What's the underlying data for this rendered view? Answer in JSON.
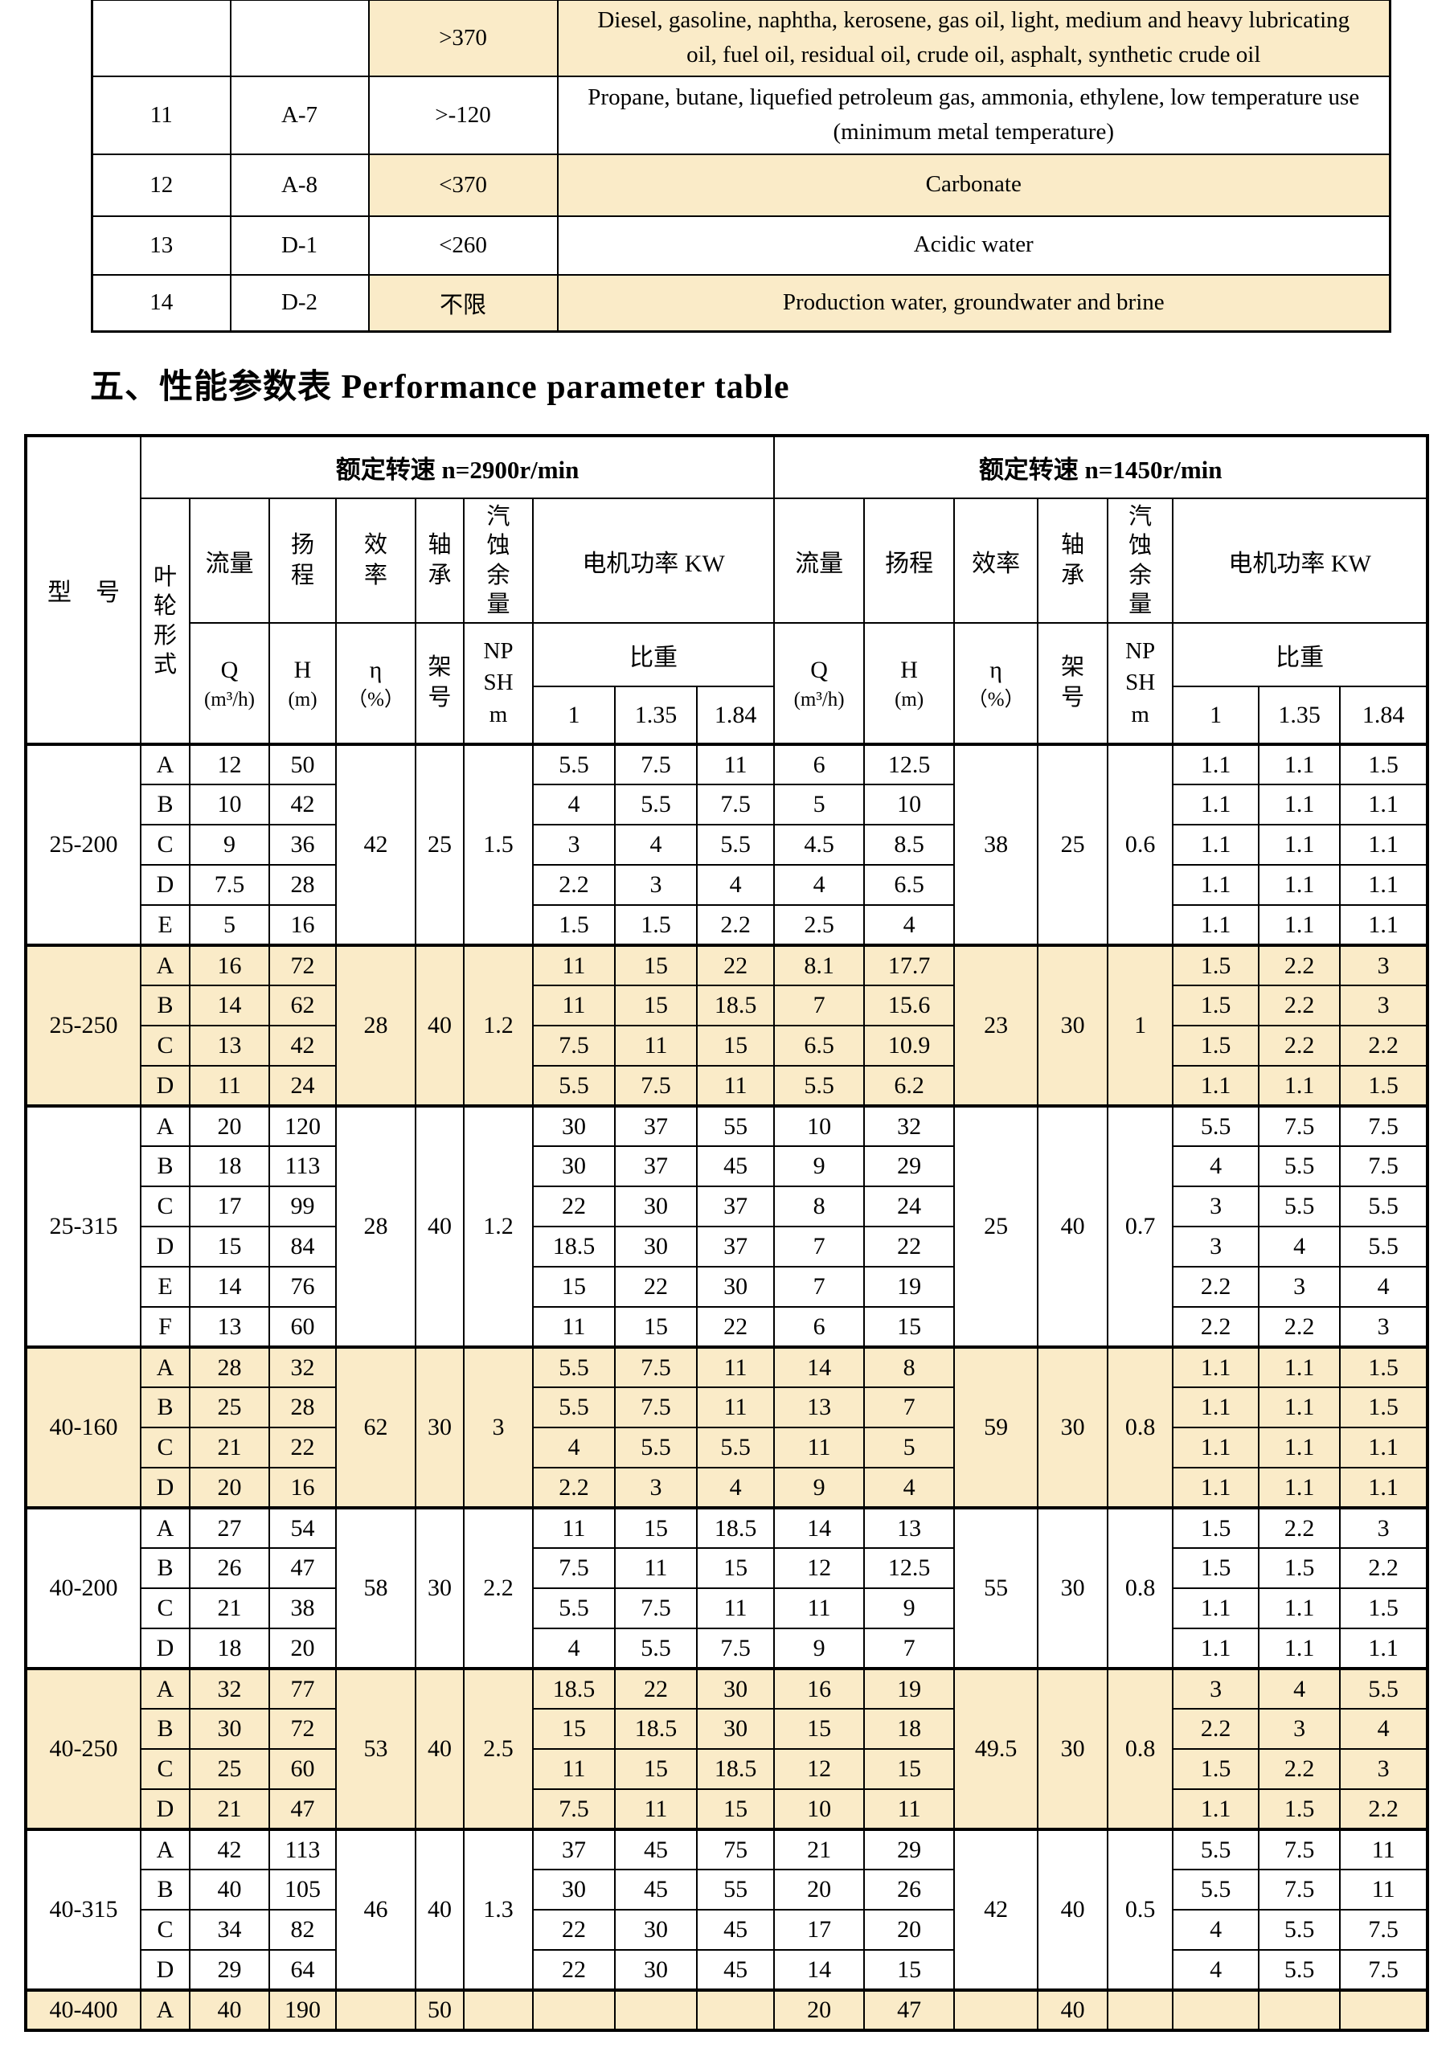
{
  "colors": {
    "shade": "#faebc8",
    "border": "#000000",
    "text": "#000000"
  },
  "media_table": {
    "rows": [
      {
        "num": "",
        "code": "",
        "temp": ">370",
        "medium": "Diesel, gasoline, naphtha, kerosene, gas oil, light, medium and heavy lubricating oil, fuel oil, residual oil, crude oil, asphalt, synthetic crude oil",
        "shaded": true
      },
      {
        "num": "11",
        "code": "A-7",
        "temp": ">-120",
        "medium": "Propane, butane, liquefied petroleum gas, ammonia, ethylene, low temperature use (minimum metal temperature)",
        "shaded": false
      },
      {
        "num": "12",
        "code": "A-8",
        "temp": "<370",
        "medium": "Carbonate",
        "shaded": true
      },
      {
        "num": "13",
        "code": "D-1",
        "temp": "<260",
        "medium": "Acidic water",
        "shaded": false
      },
      {
        "num": "14",
        "code": "D-2",
        "temp": "不限",
        "medium": "Production water, groundwater and brine",
        "shaded": true
      }
    ]
  },
  "heading": "五、性能参数表 Performance parameter table",
  "perf": {
    "header": {
      "model": "型　号",
      "impeller": "叶轮形式",
      "speed_left": "额定转速 n=2900r/min",
      "speed_right": "额定转速 n=1450r/min",
      "flow": "流量",
      "head": "扬程",
      "eff": "效率",
      "bearing": "轴承",
      "npsh": "汽蚀余量",
      "power": "电机功率 KW",
      "gravity": "比重",
      "q_sym": "Q",
      "q_unit": "(m³/h)",
      "h_sym": "H",
      "h_unit": "(m)",
      "eta_sym": "η",
      "eta_unit": "（%）",
      "frame": "架号",
      "npsh_code": "NPSH m",
      "g1": "1",
      "g135": "1.35",
      "g184": "1.84"
    },
    "sections": [
      {
        "model": "25-200",
        "shaded": false,
        "left": {
          "eta": "42",
          "frame": "25",
          "npsh": "1.5"
        },
        "right": {
          "eta": "38",
          "frame": "25",
          "npsh": "0.6"
        },
        "rows": [
          {
            "imp": "A",
            "q1": "12",
            "h1": "50",
            "p1": [
              "5.5",
              "7.5",
              "11"
            ],
            "q2": "6",
            "h2": "12.5",
            "p2": [
              "1.1",
              "1.1",
              "1.5"
            ]
          },
          {
            "imp": "B",
            "q1": "10",
            "h1": "42",
            "p1": [
              "4",
              "5.5",
              "7.5"
            ],
            "q2": "5",
            "h2": "10",
            "p2": [
              "1.1",
              "1.1",
              "1.1"
            ]
          },
          {
            "imp": "C",
            "q1": "9",
            "h1": "36",
            "p1": [
              "3",
              "4",
              "5.5"
            ],
            "q2": "4.5",
            "h2": "8.5",
            "p2": [
              "1.1",
              "1.1",
              "1.1"
            ]
          },
          {
            "imp": "D",
            "q1": "7.5",
            "h1": "28",
            "p1": [
              "2.2",
              "3",
              "4"
            ],
            "q2": "4",
            "h2": "6.5",
            "p2": [
              "1.1",
              "1.1",
              "1.1"
            ]
          },
          {
            "imp": "E",
            "q1": "5",
            "h1": "16",
            "p1": [
              "1.5",
              "1.5",
              "2.2"
            ],
            "q2": "2.5",
            "h2": "4",
            "p2": [
              "1.1",
              "1.1",
              "1.1"
            ]
          }
        ]
      },
      {
        "model": "25-250",
        "shaded": true,
        "left": {
          "eta": "28",
          "frame": "40",
          "npsh": "1.2"
        },
        "right": {
          "eta": "23",
          "frame": "30",
          "npsh": "1"
        },
        "rows": [
          {
            "imp": "A",
            "q1": "16",
            "h1": "72",
            "p1": [
              "11",
              "15",
              "22"
            ],
            "q2": "8.1",
            "h2": "17.7",
            "p2": [
              "1.5",
              "2.2",
              "3"
            ]
          },
          {
            "imp": "B",
            "q1": "14",
            "h1": "62",
            "p1": [
              "11",
              "15",
              "18.5"
            ],
            "q2": "7",
            "h2": "15.6",
            "p2": [
              "1.5",
              "2.2",
              "3"
            ]
          },
          {
            "imp": "C",
            "q1": "13",
            "h1": "42",
            "p1": [
              "7.5",
              "11",
              "15"
            ],
            "q2": "6.5",
            "h2": "10.9",
            "p2": [
              "1.5",
              "2.2",
              "2.2"
            ]
          },
          {
            "imp": "D",
            "q1": "11",
            "h1": "24",
            "p1": [
              "5.5",
              "7.5",
              "11"
            ],
            "q2": "5.5",
            "h2": "6.2",
            "p2": [
              "1.1",
              "1.1",
              "1.5"
            ]
          }
        ]
      },
      {
        "model": "25-315",
        "shaded": false,
        "left": {
          "eta": "28",
          "frame": "40",
          "npsh": "1.2"
        },
        "right": {
          "eta": "25",
          "frame": "40",
          "npsh": "0.7"
        },
        "rows": [
          {
            "imp": "A",
            "q1": "20",
            "h1": "120",
            "p1": [
              "30",
              "37",
              "55"
            ],
            "q2": "10",
            "h2": "32",
            "p2": [
              "5.5",
              "7.5",
              "7.5"
            ]
          },
          {
            "imp": "B",
            "q1": "18",
            "h1": "113",
            "p1": [
              "30",
              "37",
              "45"
            ],
            "q2": "9",
            "h2": "29",
            "p2": [
              "4",
              "5.5",
              "7.5"
            ]
          },
          {
            "imp": "C",
            "q1": "17",
            "h1": "99",
            "p1": [
              "22",
              "30",
              "37"
            ],
            "q2": "8",
            "h2": "24",
            "p2": [
              "3",
              "5.5",
              "5.5"
            ]
          },
          {
            "imp": "D",
            "q1": "15",
            "h1": "84",
            "p1": [
              "18.5",
              "30",
              "37"
            ],
            "q2": "7",
            "h2": "22",
            "p2": [
              "3",
              "4",
              "5.5"
            ]
          },
          {
            "imp": "E",
            "q1": "14",
            "h1": "76",
            "p1": [
              "15",
              "22",
              "30"
            ],
            "q2": "7",
            "h2": "19",
            "p2": [
              "2.2",
              "3",
              "4"
            ]
          },
          {
            "imp": "F",
            "q1": "13",
            "h1": "60",
            "p1": [
              "11",
              "15",
              "22"
            ],
            "q2": "6",
            "h2": "15",
            "p2": [
              "2.2",
              "2.2",
              "3"
            ]
          }
        ]
      },
      {
        "model": "40-160",
        "shaded": true,
        "left": {
          "eta": "62",
          "frame": "30",
          "npsh": "3"
        },
        "right": {
          "eta": "59",
          "frame": "30",
          "npsh": "0.8"
        },
        "rows": [
          {
            "imp": "A",
            "q1": "28",
            "h1": "32",
            "p1": [
              "5.5",
              "7.5",
              "11"
            ],
            "q2": "14",
            "h2": "8",
            "p2": [
              "1.1",
              "1.1",
              "1.5"
            ]
          },
          {
            "imp": "B",
            "q1": "25",
            "h1": "28",
            "p1": [
              "5.5",
              "7.5",
              "11"
            ],
            "q2": "13",
            "h2": "7",
            "p2": [
              "1.1",
              "1.1",
              "1.5"
            ]
          },
          {
            "imp": "C",
            "q1": "21",
            "h1": "22",
            "p1": [
              "4",
              "5.5",
              "5.5"
            ],
            "q2": "11",
            "h2": "5",
            "p2": [
              "1.1",
              "1.1",
              "1.1"
            ]
          },
          {
            "imp": "D",
            "q1": "20",
            "h1": "16",
            "p1": [
              "2.2",
              "3",
              "4"
            ],
            "q2": "9",
            "h2": "4",
            "p2": [
              "1.1",
              "1.1",
              "1.1"
            ]
          }
        ]
      },
      {
        "model": "40-200",
        "shaded": false,
        "left": {
          "eta": "58",
          "frame": "30",
          "npsh": "2.2"
        },
        "right": {
          "eta": "55",
          "frame": "30",
          "npsh": "0.8"
        },
        "rows": [
          {
            "imp": "A",
            "q1": "27",
            "h1": "54",
            "p1": [
              "11",
              "15",
              "18.5"
            ],
            "q2": "14",
            "h2": "13",
            "p2": [
              "1.5",
              "2.2",
              "3"
            ]
          },
          {
            "imp": "B",
            "q1": "26",
            "h1": "47",
            "p1": [
              "7.5",
              "11",
              "15"
            ],
            "q2": "12",
            "h2": "12.5",
            "p2": [
              "1.5",
              "1.5",
              "2.2"
            ]
          },
          {
            "imp": "C",
            "q1": "21",
            "h1": "38",
            "p1": [
              "5.5",
              "7.5",
              "11"
            ],
            "q2": "11",
            "h2": "9",
            "p2": [
              "1.1",
              "1.1",
              "1.5"
            ]
          },
          {
            "imp": "D",
            "q1": "18",
            "h1": "20",
            "p1": [
              "4",
              "5.5",
              "7.5"
            ],
            "q2": "9",
            "h2": "7",
            "p2": [
              "1.1",
              "1.1",
              "1.1"
            ]
          }
        ]
      },
      {
        "model": "40-250",
        "shaded": true,
        "left": {
          "eta": "53",
          "frame": "40",
          "npsh": "2.5"
        },
        "right": {
          "eta": "49.5",
          "frame": "30",
          "npsh": "0.8"
        },
        "rows": [
          {
            "imp": "A",
            "q1": "32",
            "h1": "77",
            "p1": [
              "18.5",
              "22",
              "30"
            ],
            "q2": "16",
            "h2": "19",
            "p2": [
              "3",
              "4",
              "5.5"
            ]
          },
          {
            "imp": "B",
            "q1": "30",
            "h1": "72",
            "p1": [
              "15",
              "18.5",
              "30"
            ],
            "q2": "15",
            "h2": "18",
            "p2": [
              "2.2",
              "3",
              "4"
            ]
          },
          {
            "imp": "C",
            "q1": "25",
            "h1": "60",
            "p1": [
              "11",
              "15",
              "18.5"
            ],
            "q2": "12",
            "h2": "15",
            "p2": [
              "1.5",
              "2.2",
              "3"
            ]
          },
          {
            "imp": "D",
            "q1": "21",
            "h1": "47",
            "p1": [
              "7.5",
              "11",
              "15"
            ],
            "q2": "10",
            "h2": "11",
            "p2": [
              "1.1",
              "1.5",
              "2.2"
            ]
          }
        ]
      },
      {
        "model": "40-315",
        "shaded": false,
        "left": {
          "eta": "46",
          "frame": "40",
          "npsh": "1.3"
        },
        "right": {
          "eta": "42",
          "frame": "40",
          "npsh": "0.5"
        },
        "rows": [
          {
            "imp": "A",
            "q1": "42",
            "h1": "113",
            "p1": [
              "37",
              "45",
              "75"
            ],
            "q2": "21",
            "h2": "29",
            "p2": [
              "5.5",
              "7.5",
              "11"
            ]
          },
          {
            "imp": "B",
            "q1": "40",
            "h1": "105",
            "p1": [
              "30",
              "45",
              "55"
            ],
            "q2": "20",
            "h2": "26",
            "p2": [
              "5.5",
              "7.5",
              "11"
            ]
          },
          {
            "imp": "C",
            "q1": "34",
            "h1": "82",
            "p1": [
              "22",
              "30",
              "45"
            ],
            "q2": "17",
            "h2": "20",
            "p2": [
              "4",
              "5.5",
              "7.5"
            ]
          },
          {
            "imp": "D",
            "q1": "29",
            "h1": "64",
            "p1": [
              "22",
              "30",
              "45"
            ],
            "q2": "14",
            "h2": "15",
            "p2": [
              "4",
              "5.5",
              "7.5"
            ]
          }
        ]
      },
      {
        "model": "40-400",
        "shaded": true,
        "left": {
          "eta": "",
          "frame": "50",
          "npsh": ""
        },
        "right": {
          "eta": "",
          "frame": "40",
          "npsh": ""
        },
        "rows": [
          {
            "imp": "A",
            "q1": "40",
            "h1": "190",
            "p1": [
              "",
              "",
              ""
            ],
            "q2": "20",
            "h2": "47",
            "p2": [
              "",
              "",
              ""
            ]
          }
        ]
      }
    ]
  }
}
